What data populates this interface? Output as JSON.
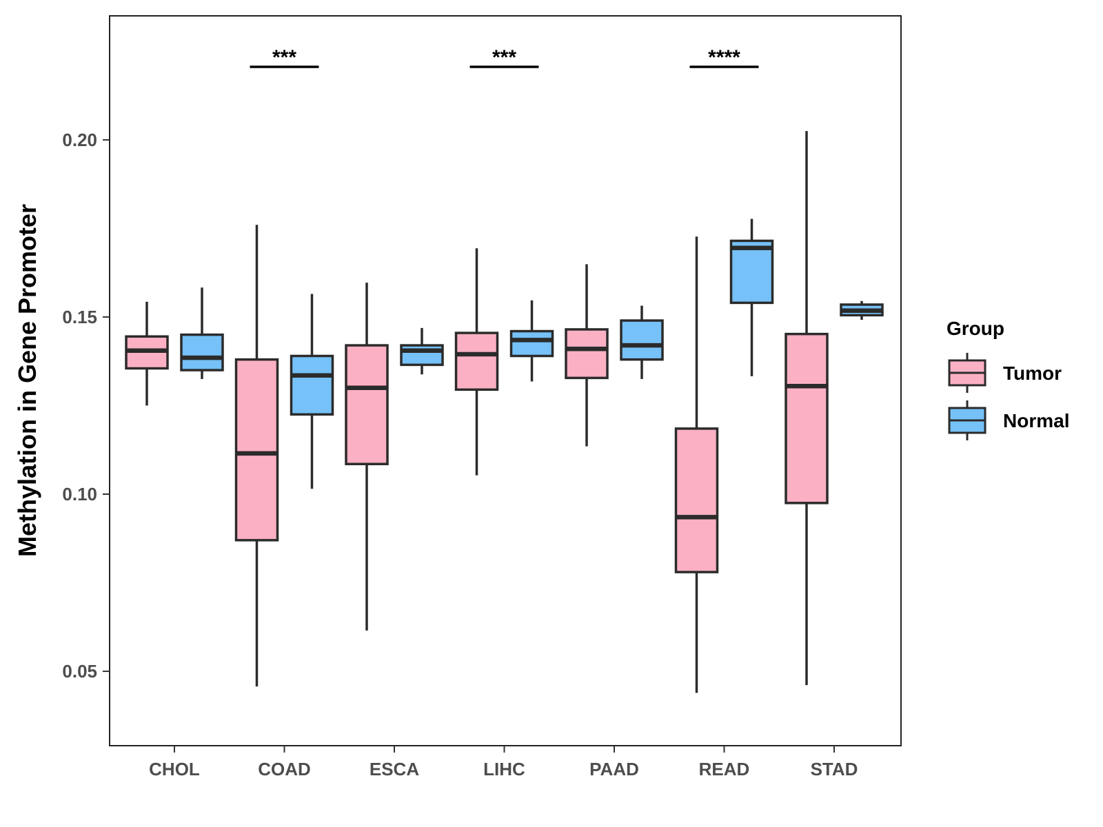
{
  "chart_data": {
    "type": "boxplot",
    "title": "",
    "xlabel": "",
    "ylabel": "Methylation in Gene Promoter",
    "ylim": [
      0.029,
      0.235
    ],
    "yticks": [
      0.05,
      0.1,
      0.15,
      0.2
    ],
    "ytick_labels": [
      "0.05",
      "0.10",
      "0.15",
      "0.20"
    ],
    "categories": [
      "CHOL",
      "COAD",
      "ESCA",
      "LIHC",
      "PAAD",
      "READ",
      "STAD"
    ],
    "legend": {
      "title": "Group",
      "position": "right",
      "entries": [
        {
          "name": "Tumor",
          "color": "#fbb1c3"
        },
        {
          "name": "Normal",
          "color": "#76c1f7"
        }
      ]
    },
    "series": [
      {
        "name": "Tumor",
        "color": "#fbb1c3",
        "boxes": [
          {
            "min": 0.125,
            "q1": 0.1355,
            "median": 0.1405,
            "q3": 0.1445,
            "max": 0.1543
          },
          {
            "min": 0.0457,
            "q1": 0.087,
            "median": 0.1115,
            "q3": 0.138,
            "max": 0.176
          },
          {
            "min": 0.0615,
            "q1": 0.1085,
            "median": 0.13,
            "q3": 0.142,
            "max": 0.1597
          },
          {
            "min": 0.1053,
            "q1": 0.1295,
            "median": 0.1395,
            "q3": 0.1455,
            "max": 0.1694
          },
          {
            "min": 0.1135,
            "q1": 0.1328,
            "median": 0.141,
            "q3": 0.1465,
            "max": 0.1649
          },
          {
            "min": 0.0439,
            "q1": 0.078,
            "median": 0.0935,
            "q3": 0.1185,
            "max": 0.1727
          },
          {
            "min": 0.0461,
            "q1": 0.0975,
            "median": 0.1305,
            "q3": 0.1452,
            "max": 0.2025
          }
        ]
      },
      {
        "name": "Normal",
        "color": "#76c1f7",
        "boxes": [
          {
            "min": 0.1325,
            "q1": 0.135,
            "median": 0.1385,
            "q3": 0.145,
            "max": 0.1583
          },
          {
            "min": 0.1015,
            "q1": 0.1225,
            "median": 0.1335,
            "q3": 0.139,
            "max": 0.1565
          },
          {
            "min": 0.1338,
            "q1": 0.1365,
            "median": 0.1405,
            "q3": 0.142,
            "max": 0.1469
          },
          {
            "min": 0.1318,
            "q1": 0.139,
            "median": 0.1435,
            "q3": 0.146,
            "max": 0.1547
          },
          {
            "min": 0.1325,
            "q1": 0.138,
            "median": 0.142,
            "q3": 0.149,
            "max": 0.1532
          },
          {
            "min": 0.1333,
            "q1": 0.154,
            "median": 0.1695,
            "q3": 0.1715,
            "max": 0.1777
          },
          {
            "min": 0.1492,
            "q1": 0.1505,
            "median": 0.1518,
            "q3": 0.1535,
            "max": 0.1545
          }
        ]
      }
    ],
    "significance": [
      {
        "category": "COAD",
        "label": "***"
      },
      {
        "category": "LIHC",
        "label": "***"
      },
      {
        "category": "READ",
        "label": "****"
      }
    ],
    "significance_y": 0.2206
  }
}
